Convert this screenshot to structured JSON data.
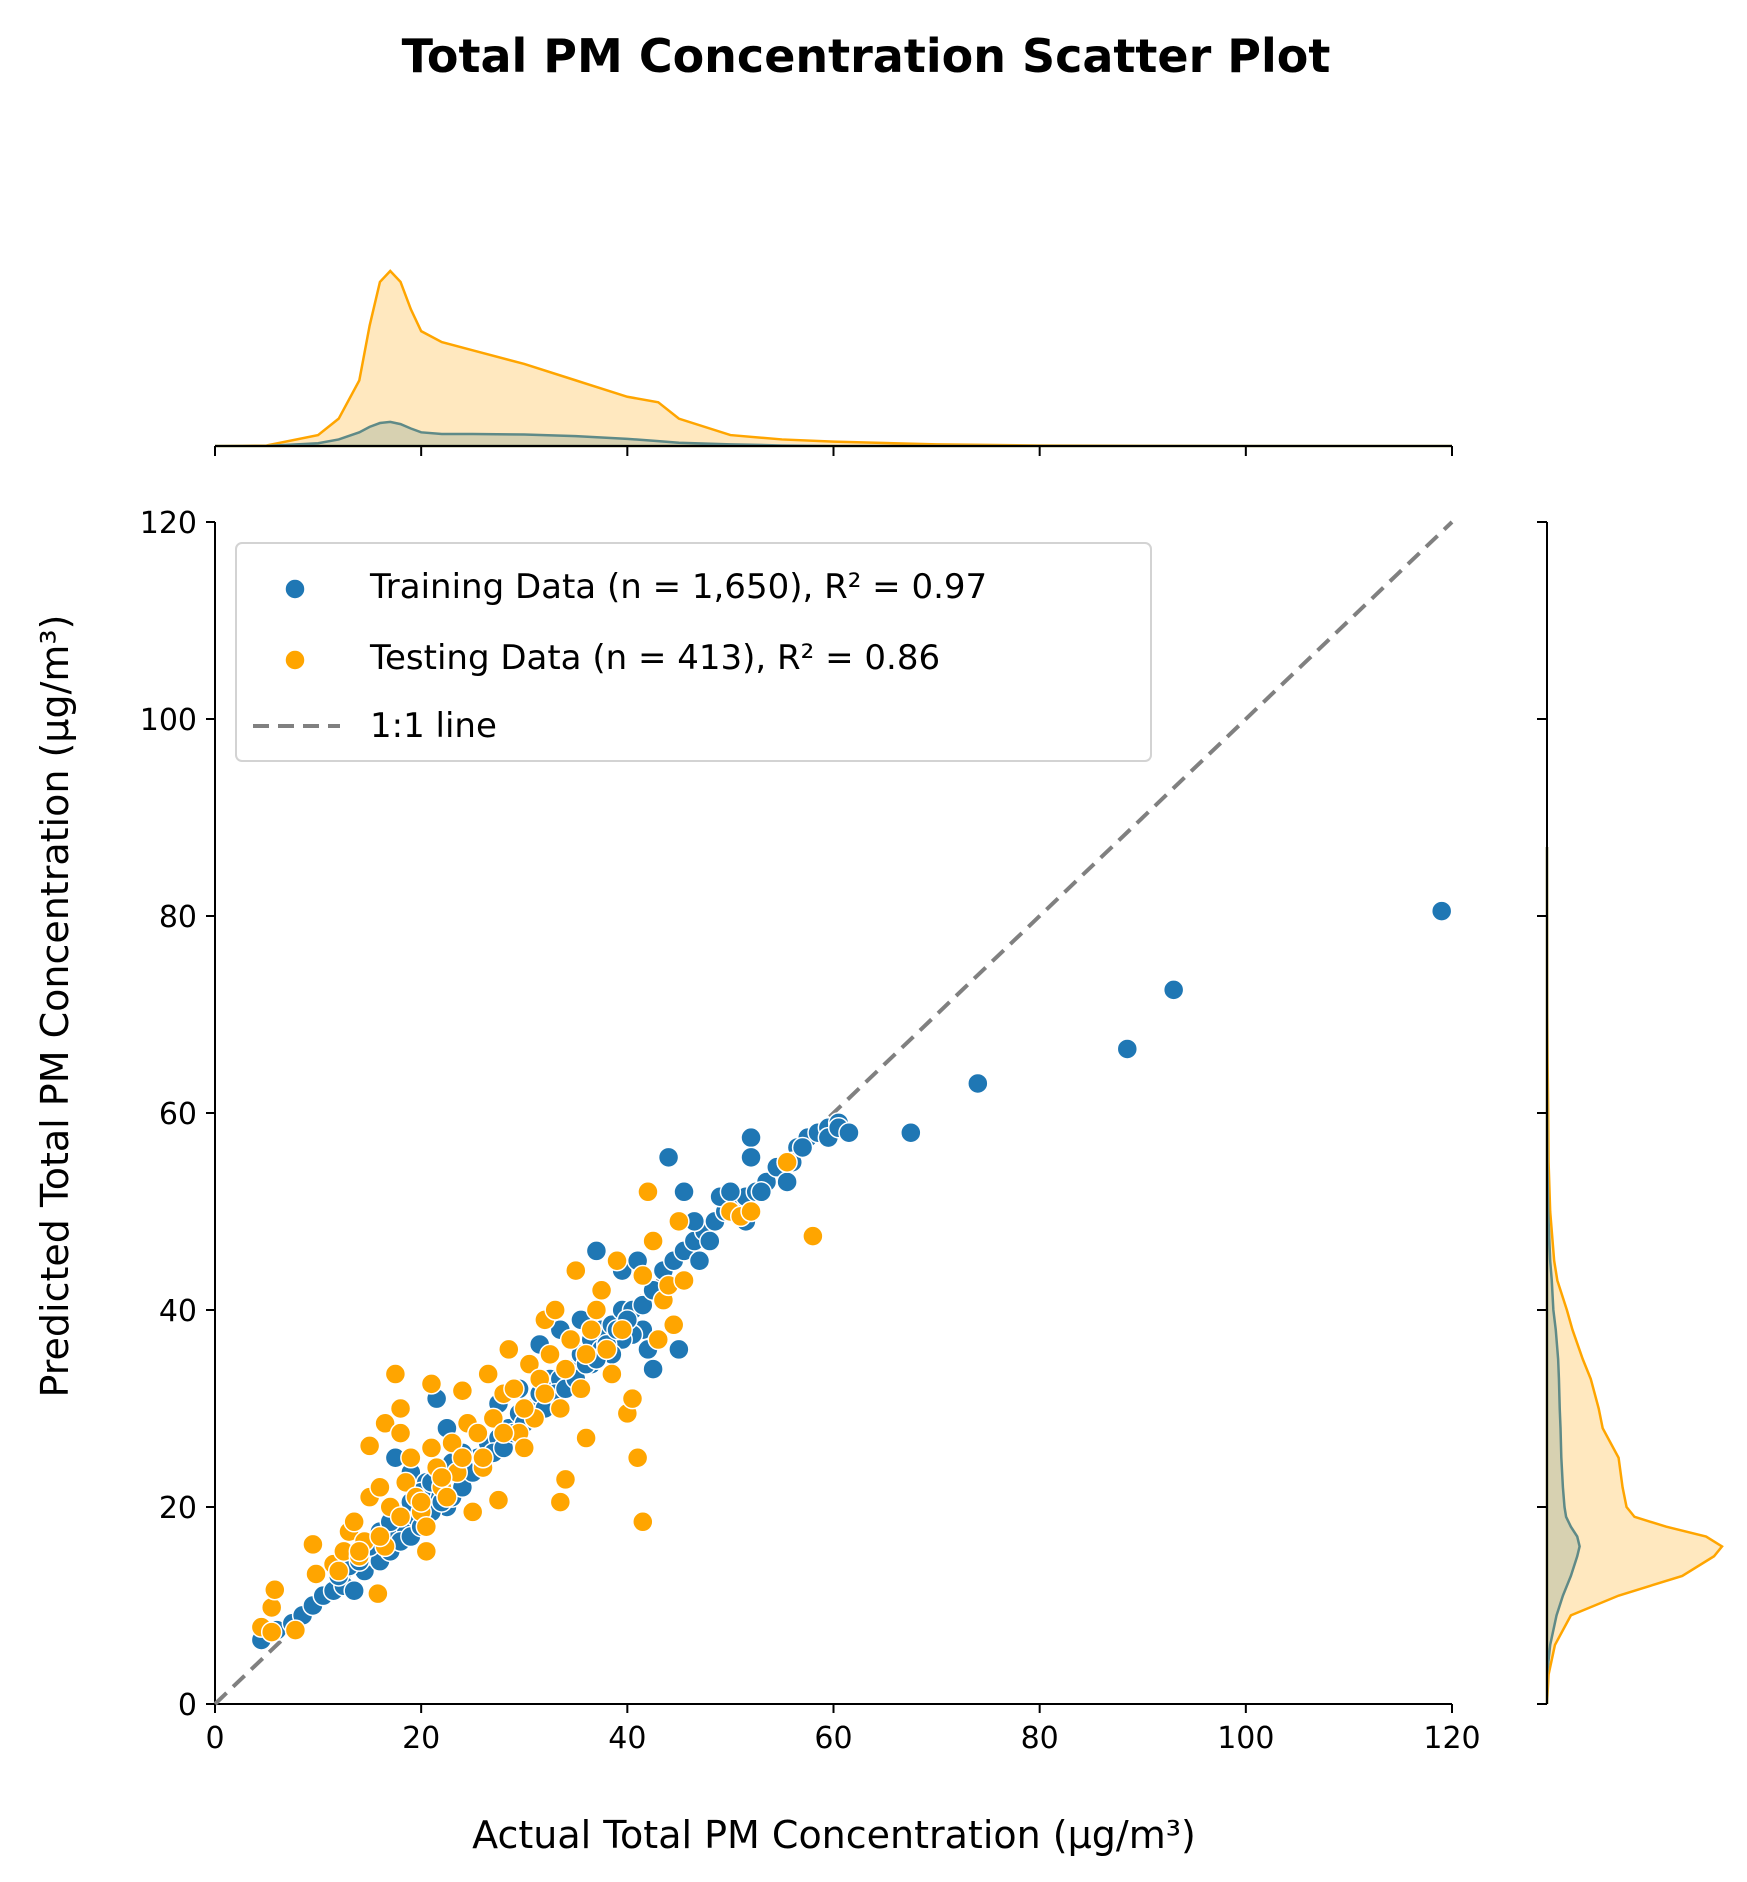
{
  "chart_data": {
    "type": "scatter",
    "title": "Total PM Concentration Scatter Plot",
    "xlabel": "Actual Total PM Concentration (μg/m³)",
    "ylabel": "Predicted Total PM Concentration (μg/m³)",
    "xlim": [
      0,
      120
    ],
    "ylim": [
      0,
      120
    ],
    "xticks": [
      "0",
      "20",
      "40",
      "60",
      "80",
      "100",
      "120"
    ],
    "yticks": [
      "0",
      "20",
      "40",
      "60",
      "80",
      "100",
      "120"
    ],
    "grid": false,
    "legend_position": "upper-left",
    "colors": {
      "training": "#1f77b4",
      "testing": "#ffa500",
      "identity": "#808080"
    },
    "series": [
      {
        "name": "Training Data (n = 1,650), R² = 0.97",
        "color": "#1f77b4",
        "points": [
          [
            4.5,
            6.5
          ],
          [
            6,
            7.5
          ],
          [
            7.5,
            8.2
          ],
          [
            8.5,
            9.0
          ],
          [
            9.5,
            10.0
          ],
          [
            10.5,
            11.0
          ],
          [
            11.5,
            11.5
          ],
          [
            12.5,
            12.0
          ],
          [
            13.5,
            11.5
          ],
          [
            14.5,
            13.5
          ],
          [
            15.5,
            15.0
          ],
          [
            16.5,
            16.0
          ],
          [
            17.5,
            17.5
          ],
          [
            18.5,
            18.0
          ],
          [
            19.5,
            19.0
          ],
          [
            20.5,
            20.5
          ],
          [
            21.5,
            21.0
          ],
          [
            22.5,
            20.0
          ],
          [
            23.5,
            23.5
          ],
          [
            24.5,
            24.0
          ],
          [
            25.5,
            25.0
          ],
          [
            26.5,
            26.5
          ],
          [
            27.5,
            27.0
          ],
          [
            28.5,
            28.0
          ],
          [
            29.5,
            29.5
          ],
          [
            30.5,
            30.0
          ],
          [
            31.5,
            31.5
          ],
          [
            32.5,
            33.0
          ],
          [
            33.5,
            33.0
          ],
          [
            34.5,
            34.0
          ],
          [
            35.5,
            35.5
          ],
          [
            36.5,
            37.0
          ],
          [
            37.5,
            38.0
          ],
          [
            38.5,
            38.5
          ],
          [
            39.5,
            40.0
          ],
          [
            40.5,
            40.0
          ],
          [
            41.5,
            40.5
          ],
          [
            42.5,
            42.0
          ],
          [
            43.5,
            44.0
          ],
          [
            44.5,
            45.0
          ],
          [
            45.5,
            46.0
          ],
          [
            46.5,
            47.0
          ],
          [
            47.5,
            48.0
          ],
          [
            48.5,
            49.0
          ],
          [
            49.5,
            50.0
          ],
          [
            50.5,
            51.0
          ],
          [
            51.5,
            51.5
          ],
          [
            52.5,
            52.0
          ],
          [
            53.5,
            53.0
          ],
          [
            54.5,
            54.5
          ],
          [
            55.5,
            55.0
          ],
          [
            56.5,
            56.5
          ],
          [
            57.5,
            57.5
          ],
          [
            58.5,
            58.0
          ],
          [
            59.5,
            58.5
          ],
          [
            60.5,
            59.0
          ],
          [
            61.5,
            58.0
          ],
          [
            17.5,
            25.0
          ],
          [
            19.0,
            23.5
          ],
          [
            20.5,
            22.5
          ],
          [
            21.5,
            31.0
          ],
          [
            22.5,
            28.0
          ],
          [
            25.5,
            27.5
          ],
          [
            27.5,
            30.5
          ],
          [
            29.5,
            32.0
          ],
          [
            31.5,
            36.5
          ],
          [
            33.5,
            38.0
          ],
          [
            35.5,
            39.0
          ],
          [
            37.0,
            46.0
          ],
          [
            39.5,
            44.0
          ],
          [
            41.0,
            45.0
          ],
          [
            42.5,
            34.0
          ],
          [
            42.0,
            36.0
          ],
          [
            41.5,
            38.0
          ],
          [
            40.5,
            37.5
          ],
          [
            39.5,
            37.0
          ],
          [
            38.5,
            35.5
          ],
          [
            37.5,
            36.0
          ],
          [
            36.5,
            34.5
          ],
          [
            44.0,
            55.5
          ],
          [
            45.0,
            36.0
          ],
          [
            45.5,
            52.0
          ],
          [
            46.5,
            49.0
          ],
          [
            47.0,
            45.0
          ],
          [
            48.0,
            47.0
          ],
          [
            49.0,
            51.5
          ],
          [
            50.0,
            52.0
          ],
          [
            51.5,
            49.0
          ],
          [
            52.0,
            57.5
          ],
          [
            52.0,
            55.5
          ],
          [
            53.0,
            52.0
          ],
          [
            55.5,
            53.0
          ],
          [
            56.0,
            55.0
          ],
          [
            57.0,
            56.5
          ],
          [
            59.5,
            57.5
          ],
          [
            60.5,
            58.5
          ],
          [
            61.5,
            58.0
          ],
          [
            67.5,
            58.0
          ],
          [
            74.0,
            63.0
          ],
          [
            88.5,
            66.5
          ],
          [
            93.0,
            72.5
          ],
          [
            119.0,
            80.5
          ],
          [
            16.0,
            14.5
          ],
          [
            17.0,
            15.5
          ],
          [
            18.0,
            16.5
          ],
          [
            19.0,
            17.0
          ],
          [
            20.0,
            18.0
          ],
          [
            21.0,
            19.5
          ],
          [
            22.0,
            20.5
          ],
          [
            23.0,
            21.0
          ],
          [
            24.0,
            22.0
          ],
          [
            25.0,
            23.5
          ],
          [
            26.0,
            24.5
          ],
          [
            27.0,
            25.5
          ],
          [
            28.0,
            26.0
          ],
          [
            29.0,
            27.5
          ],
          [
            30.0,
            28.5
          ],
          [
            31.0,
            29.0
          ],
          [
            32.0,
            30.0
          ],
          [
            33.0,
            31.5
          ],
          [
            34.0,
            32.0
          ],
          [
            35.0,
            33.0
          ],
          [
            36.0,
            34.5
          ],
          [
            37.0,
            35.0
          ],
          [
            38.0,
            36.5
          ],
          [
            39.0,
            38.0
          ],
          [
            40.0,
            39.0
          ],
          [
            12.0,
            13.0
          ],
          [
            13.0,
            14.0
          ],
          [
            14.0,
            14.5
          ],
          [
            15.0,
            16.0
          ],
          [
            16.0,
            17.5
          ],
          [
            17.0,
            18.5
          ],
          [
            18.0,
            19.5
          ],
          [
            19.0,
            20.5
          ],
          [
            20.0,
            21.5
          ],
          [
            21.0,
            22.5
          ],
          [
            22.0,
            23.5
          ],
          [
            23.0,
            24.5
          ],
          [
            24.0,
            25.5
          ]
        ]
      },
      {
        "name": "Testing Data (n = 413), R² = 0.86",
        "color": "#ffa500",
        "points": [
          [
            4.5,
            7.8
          ],
          [
            5.5,
            7.3
          ],
          [
            5.5,
            9.8
          ],
          [
            5.8,
            11.6
          ],
          [
            7.8,
            7.5
          ],
          [
            9.5,
            16.2
          ],
          [
            9.8,
            13.2
          ],
          [
            11.5,
            14.2
          ],
          [
            12.5,
            15.5
          ],
          [
            13.0,
            17.5
          ],
          [
            13.5,
            18.5
          ],
          [
            14.0,
            15.0
          ],
          [
            14.5,
            16.5
          ],
          [
            15.0,
            21.0
          ],
          [
            15.0,
            26.2
          ],
          [
            15.8,
            11.2
          ],
          [
            16.0,
            22.0
          ],
          [
            16.5,
            28.5
          ],
          [
            16.5,
            16.0
          ],
          [
            17.0,
            20.0
          ],
          [
            17.5,
            33.5
          ],
          [
            18.0,
            27.5
          ],
          [
            18.0,
            30.0
          ],
          [
            18.5,
            22.5
          ],
          [
            19.0,
            25.0
          ],
          [
            19.5,
            21.0
          ],
          [
            20.0,
            19.5
          ],
          [
            20.5,
            18.0
          ],
          [
            20.5,
            15.5
          ],
          [
            21.0,
            32.5
          ],
          [
            21.0,
            26.0
          ],
          [
            21.5,
            24.0
          ],
          [
            22.0,
            22.0
          ],
          [
            22.5,
            21.0
          ],
          [
            23.0,
            26.5
          ],
          [
            23.5,
            23.5
          ],
          [
            24.0,
            31.8
          ],
          [
            24.0,
            25.0
          ],
          [
            24.5,
            28.5
          ],
          [
            25.0,
            19.5
          ],
          [
            25.5,
            27.5
          ],
          [
            26.0,
            24.0
          ],
          [
            26.5,
            33.5
          ],
          [
            27.0,
            29.0
          ],
          [
            27.5,
            20.7
          ],
          [
            28.0,
            31.5
          ],
          [
            28.5,
            36.0
          ],
          [
            29.0,
            32.0
          ],
          [
            29.5,
            27.5
          ],
          [
            30.0,
            26.0
          ],
          [
            30.5,
            34.5
          ],
          [
            31.0,
            29.0
          ],
          [
            31.5,
            33.0
          ],
          [
            32.0,
            39.0
          ],
          [
            32.5,
            35.5
          ],
          [
            33.0,
            40.0
          ],
          [
            33.5,
            30.0
          ],
          [
            33.5,
            20.5
          ],
          [
            34.0,
            22.8
          ],
          [
            34.5,
            37.0
          ],
          [
            35.0,
            44.0
          ],
          [
            35.5,
            32.0
          ],
          [
            36.0,
            27.0
          ],
          [
            36.5,
            38.0
          ],
          [
            37.0,
            40.0
          ],
          [
            37.5,
            42.0
          ],
          [
            38.0,
            36.0
          ],
          [
            38.5,
            33.5
          ],
          [
            39.0,
            45.0
          ],
          [
            39.5,
            38.0
          ],
          [
            40.0,
            29.5
          ],
          [
            40.5,
            31.0
          ],
          [
            41.0,
            25.0
          ],
          [
            41.5,
            18.5
          ],
          [
            41.5,
            43.5
          ],
          [
            42.0,
            52.0
          ],
          [
            42.5,
            47.0
          ],
          [
            43.0,
            37.0
          ],
          [
            43.5,
            41.0
          ],
          [
            44.0,
            42.5
          ],
          [
            44.5,
            38.5
          ],
          [
            45.0,
            49.0
          ],
          [
            45.5,
            43.0
          ],
          [
            50.0,
            50.0
          ],
          [
            51.0,
            49.5
          ],
          [
            52.0,
            50.0
          ],
          [
            55.5,
            55.0
          ],
          [
            58.0,
            47.5
          ],
          [
            26.0,
            25.0
          ],
          [
            28.0,
            27.5
          ],
          [
            30.0,
            30.0
          ],
          [
            32.0,
            31.5
          ],
          [
            34.0,
            34.0
          ],
          [
            36.0,
            35.5
          ],
          [
            12.0,
            13.5
          ],
          [
            14.0,
            15.5
          ],
          [
            16.0,
            17.0
          ],
          [
            18.0,
            19.0
          ],
          [
            20.0,
            20.5
          ],
          [
            22.0,
            23.0
          ]
        ]
      }
    ],
    "identity_line": {
      "name": "1:1 line",
      "from": [
        0,
        0
      ],
      "to": [
        120,
        120
      ],
      "style": "dashed"
    },
    "marginal_x_density": {
      "x": [
        0,
        5,
        10,
        12,
        14,
        15,
        16,
        17,
        18,
        19,
        20,
        22,
        25,
        30,
        35,
        40,
        43,
        45,
        50,
        55,
        60,
        70,
        80,
        100,
        120
      ],
      "testing": [
        0,
        0.001,
        0.02,
        0.05,
        0.12,
        0.22,
        0.3,
        0.32,
        0.3,
        0.25,
        0.21,
        0.19,
        0.175,
        0.15,
        0.12,
        0.09,
        0.08,
        0.05,
        0.02,
        0.012,
        0.008,
        0.003,
        0.001,
        0,
        0
      ],
      "training": [
        0,
        0,
        0.005,
        0.012,
        0.025,
        0.035,
        0.042,
        0.044,
        0.04,
        0.032,
        0.025,
        0.022,
        0.022,
        0.021,
        0.018,
        0.013,
        0.009,
        0.006,
        0.003,
        0.001,
        0,
        0,
        0,
        0,
        0
      ]
    },
    "marginal_y_density": {
      "y": [
        0,
        3,
        6,
        9,
        11,
        13,
        15,
        16,
        17,
        18,
        19,
        20,
        22,
        25,
        28,
        30,
        33,
        35,
        38,
        40,
        43,
        45,
        50,
        55,
        60,
        65,
        70,
        80,
        87
      ],
      "testing": [
        0,
        0.002,
        0.01,
        0.03,
        0.09,
        0.17,
        0.21,
        0.22,
        0.2,
        0.15,
        0.11,
        0.1,
        0.095,
        0.09,
        0.07,
        0.065,
        0.055,
        0.045,
        0.032,
        0.025,
        0.013,
        0.009,
        0.004,
        0.002,
        0.0015,
        0.0008,
        0.0004,
        0.0002,
        0
      ],
      "training": [
        0,
        0,
        0.004,
        0.012,
        0.02,
        0.03,
        0.038,
        0.041,
        0.038,
        0.03,
        0.024,
        0.022,
        0.02,
        0.018,
        0.017,
        0.016,
        0.015,
        0.014,
        0.011,
        0.008,
        0.006,
        0.004,
        0.0015,
        0.0005,
        0.0002,
        0,
        0,
        0,
        0
      ]
    }
  }
}
